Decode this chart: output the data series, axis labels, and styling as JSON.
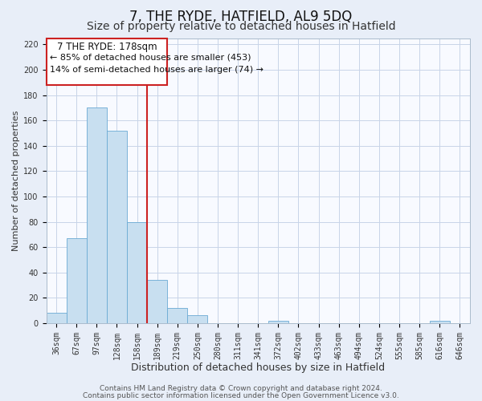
{
  "title": "7, THE RYDE, HATFIELD, AL9 5DQ",
  "subtitle": "Size of property relative to detached houses in Hatfield",
  "xlabel": "Distribution of detached houses by size in Hatfield",
  "ylabel": "Number of detached properties",
  "bar_labels": [
    "36sqm",
    "67sqm",
    "97sqm",
    "128sqm",
    "158sqm",
    "189sqm",
    "219sqm",
    "250sqm",
    "280sqm",
    "311sqm",
    "341sqm",
    "372sqm",
    "402sqm",
    "433sqm",
    "463sqm",
    "494sqm",
    "524sqm",
    "555sqm",
    "585sqm",
    "616sqm",
    "646sqm"
  ],
  "bar_values": [
    8,
    67,
    170,
    152,
    80,
    34,
    12,
    6,
    0,
    0,
    0,
    2,
    0,
    0,
    0,
    0,
    0,
    0,
    0,
    2,
    0
  ],
  "bar_color": "#c8dff0",
  "bar_edge_color": "#6aaad4",
  "ylim": [
    0,
    225
  ],
  "yticks": [
    0,
    20,
    40,
    60,
    80,
    100,
    120,
    140,
    160,
    180,
    200,
    220
  ],
  "red_line_x": 4.5,
  "annotation_title": "7 THE RYDE: 178sqm",
  "annotation_line1": "← 85% of detached houses are smaller (453)",
  "annotation_line2": "14% of semi-detached houses are larger (74) →",
  "footnote1": "Contains HM Land Registry data © Crown copyright and database right 2024.",
  "footnote2": "Contains public sector information licensed under the Open Government Licence v3.0.",
  "background_color": "#e8eef8",
  "plot_bg_color": "#f8faff",
  "grid_color": "#c8d4e8",
  "title_fontsize": 12,
  "subtitle_fontsize": 10,
  "xlabel_fontsize": 9,
  "ylabel_fontsize": 8,
  "tick_fontsize": 7,
  "annotation_fontsize": 8.5,
  "footnote_fontsize": 6.5
}
